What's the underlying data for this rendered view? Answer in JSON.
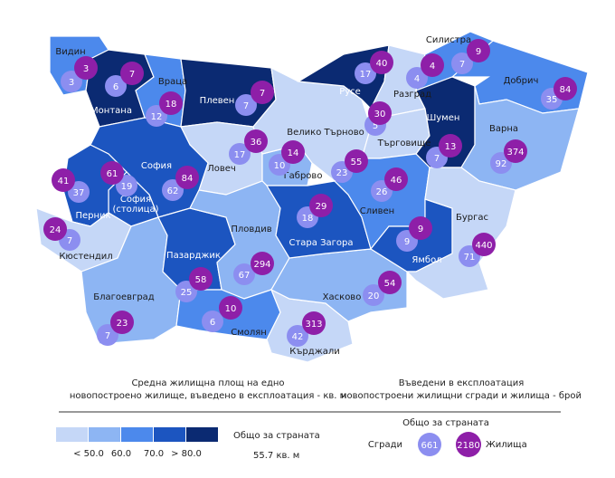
{
  "map": {
    "bubble_colors": {
      "buildings": "#8c8ef0",
      "dwellings": "#8e1fa8"
    },
    "regions": [
      {
        "name": "Видин",
        "color": "#4c89ec",
        "buildings": 3,
        "dwellings": 3
      },
      {
        "name": "Монтана",
        "color": "#0b2a72",
        "buildings": 6,
        "dwellings": 7
      },
      {
        "name": "Враца",
        "color": "#4c89ec",
        "buildings": 12,
        "dwellings": 18
      },
      {
        "name": "Плевен",
        "color": "#0b2a72",
        "buildings": 7,
        "dwellings": 7
      },
      {
        "name": "Ловеч",
        "color": "#c5d7f7",
        "buildings": 17,
        "dwellings": 36
      },
      {
        "name": "Габрово",
        "color": "#8db5f3",
        "buildings": 10,
        "dwellings": 14
      },
      {
        "name": "Велико Търново",
        "color": "#c5d7f7",
        "buildings": 23,
        "dwellings": 55
      },
      {
        "name": "Русе",
        "color": "#0b2a72",
        "buildings": 17,
        "dwellings": 40
      },
      {
        "name": "Разград",
        "color": "#c5d7f7",
        "buildings": 4,
        "dwellings": 4
      },
      {
        "name": "Силистра",
        "color": "#4c89ec",
        "buildings": 7,
        "dwellings": 9
      },
      {
        "name": "Търговище",
        "color": "#c5d7f7",
        "buildings": 5,
        "dwellings": 30
      },
      {
        "name": "Шумен",
        "color": "#0b2a72",
        "buildings": 7,
        "dwellings": 13
      },
      {
        "name": "Добрич",
        "color": "#4c89ec",
        "buildings": 35,
        "dwellings": 84
      },
      {
        "name": "Варна",
        "color": "#8db5f3",
        "buildings": 92,
        "dwellings": 374
      },
      {
        "name": "София",
        "color": "#1c55c0",
        "buildings": 19,
        "dwellings": 61
      },
      {
        "name": "София\n(столица)",
        "color": "#1c55c0",
        "buildings": 62,
        "dwellings": 84
      },
      {
        "name": "Перник",
        "color": "#1c55c0",
        "buildings": 37,
        "dwellings": 41
      },
      {
        "name": "Кюстендил",
        "color": "#c5d7f7",
        "buildings": 7,
        "dwellings": 24
      },
      {
        "name": "Благоевград",
        "color": "#8db5f3",
        "buildings": 7,
        "dwellings": 23
      },
      {
        "name": "Пазарджик",
        "color": "#1c55c0",
        "buildings": 25,
        "dwellings": 58
      },
      {
        "name": "Пловдив",
        "color": "#8db5f3",
        "buildings": 67,
        "dwellings": 294
      },
      {
        "name": "Смолян",
        "color": "#4c89ec",
        "buildings": 6,
        "dwellings": 10
      },
      {
        "name": "Кърджали",
        "color": "#c5d7f7",
        "buildings": 42,
        "dwellings": 313
      },
      {
        "name": "Хасково",
        "color": "#8db5f3",
        "buildings": 20,
        "dwellings": 54
      },
      {
        "name": "Стара Загора",
        "color": "#1c55c0",
        "buildings": 18,
        "dwellings": 29
      },
      {
        "name": "Сливен",
        "color": "#4c89ec",
        "buildings": 26,
        "dwellings": 46
      },
      {
        "name": "Ямбол",
        "color": "#1c55c0",
        "buildings": 9,
        "dwellings": 9
      },
      {
        "name": "Бургас",
        "color": "#c5d7f7",
        "buildings": 71,
        "dwellings": 440
      }
    ]
  },
  "legend_area": {
    "title_1": "Средна жилищна площ на едно",
    "title_2": "новопостроено жилище, въведено в експлоатация - кв. м",
    "colors": [
      "#c5d7f7",
      "#8db5f3",
      "#4c89ec",
      "#1c55c0",
      "#0b2a72"
    ],
    "ticks": [
      "< 50.0",
      "60.0",
      "70.0",
      "> 80.0"
    ],
    "total_label": "Общо за страната",
    "total_value": "55.7 кв. м"
  },
  "legend_count": {
    "title_1": "Въведени в експлоатация",
    "title_2": "новопостроени жилищни сгради и жилища - брой",
    "total_label": "Общо за страната",
    "buildings_label": "Сгради",
    "buildings_total": 661,
    "dwellings_label": "Жилища",
    "dwellings_total": 2180
  }
}
